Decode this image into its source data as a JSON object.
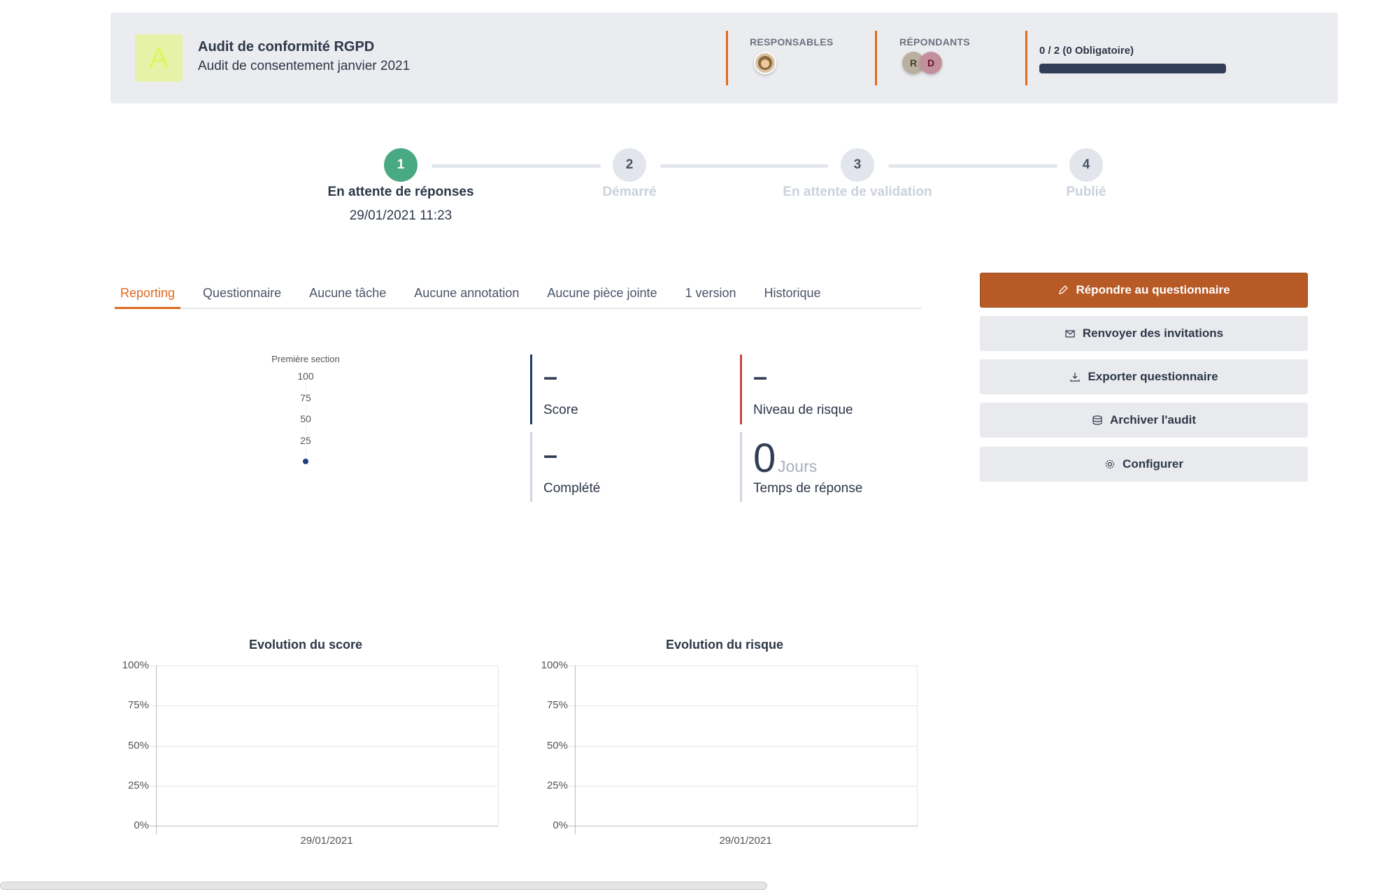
{
  "header": {
    "logo_letter": "A",
    "title": "Audit de conformité RGPD",
    "subtitle": "Audit de consentement janvier 2021",
    "responsables_label": "RESPONSABLES",
    "repondants_label": "RÉPONDANTS",
    "repondants": [
      {
        "initial": "R",
        "color": "#b9b0a0"
      },
      {
        "initial": "D",
        "color": "#c28f9d"
      }
    ],
    "progress_text": "0 / 2 (0 Obligatoire)",
    "progress_fraction": 0.0,
    "accent_color": "#dd6b20"
  },
  "stepper": {
    "steps": [
      {
        "number": "1",
        "label": "En attente de réponses",
        "date": "29/01/2021 11:23",
        "active": true
      },
      {
        "number": "2",
        "label": "Démarré",
        "active": false
      },
      {
        "number": "3",
        "label": "En attente de validation",
        "active": false
      },
      {
        "number": "4",
        "label": "Publié",
        "active": false
      }
    ],
    "active_color": "#48a982"
  },
  "tabs": [
    "Reporting",
    "Questionnaire",
    "Aucune tâche",
    "Aucune annotation",
    "Aucune pièce jointe",
    "1 version",
    "Historique"
  ],
  "actions": [
    {
      "label": "Répondre au questionnaire",
      "icon": "pencil-icon"
    },
    {
      "label": "Renvoyer des invitations",
      "icon": "mail-icon"
    },
    {
      "label": "Exporter questionnaire",
      "icon": "download-icon"
    },
    {
      "label": "Archiver l'audit",
      "icon": "database-icon"
    },
    {
      "label": "Configurer",
      "icon": "gear-icon"
    }
  ],
  "kpis": {
    "score": {
      "value": "–",
      "label": "Score"
    },
    "risk": {
      "value": "–",
      "label": "Niveau de risque"
    },
    "completed": {
      "value": "–",
      "label": "Complété"
    },
    "response_time": {
      "value": "0",
      "unit": "Jours",
      "label": "Temps de réponse"
    }
  },
  "chart_data": [
    {
      "type": "radar",
      "axis_label": "Première section",
      "ticks": [
        "100",
        "75",
        "50",
        "25"
      ],
      "values": [
        0
      ],
      "ylim": [
        0,
        100
      ]
    },
    {
      "type": "line",
      "title": "Evolution du score",
      "y_ticks": [
        "100%",
        "75%",
        "50%",
        "25%",
        "0%"
      ],
      "x_ticks": [
        "29/01/2021"
      ],
      "ylim": [
        0,
        100
      ],
      "series": [],
      "grid": true
    },
    {
      "type": "line",
      "title": "Evolution du risque",
      "y_ticks": [
        "100%",
        "75%",
        "50%",
        "25%",
        "0%"
      ],
      "x_ticks": [
        "29/01/2021"
      ],
      "ylim": [
        0,
        100
      ],
      "series": [],
      "grid": true
    }
  ]
}
